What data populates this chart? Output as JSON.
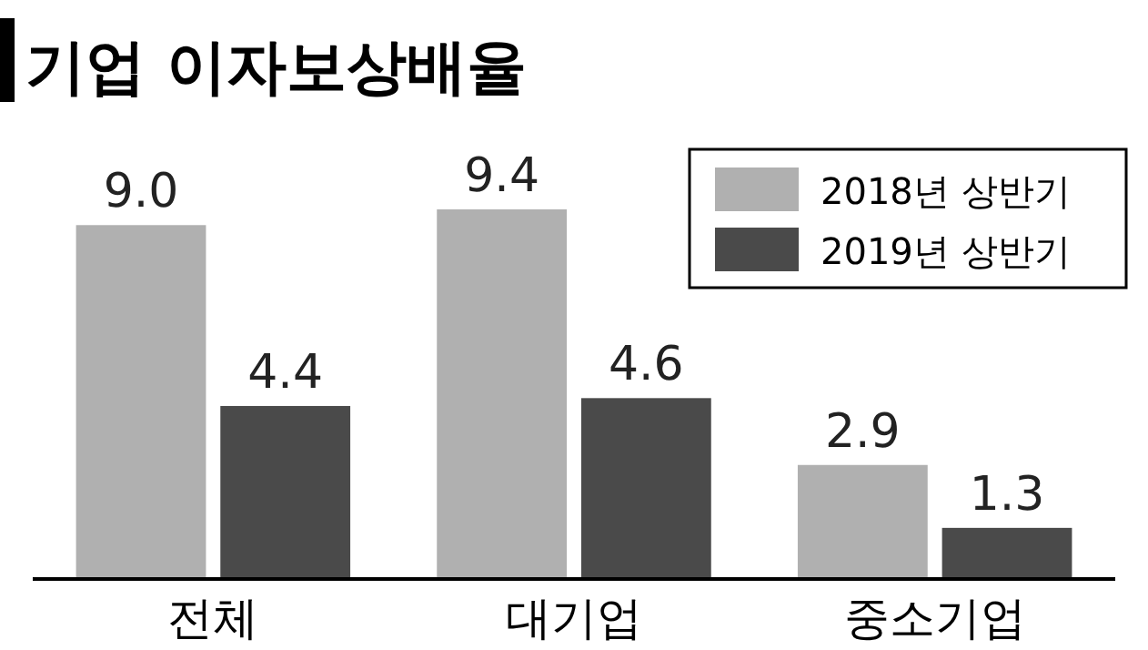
{
  "chart_data": {
    "type": "bar",
    "title": "기업 이자보상배율",
    "categories": [
      "전체",
      "대기업",
      "중소기업"
    ],
    "series": [
      {
        "name": "2018년 상반기",
        "color": "#b0b0b0",
        "values": [
          9.0,
          9.4,
          2.9
        ],
        "value_labels": [
          "9.0",
          "9.4",
          "2.9"
        ]
      },
      {
        "name": "2019년 상반기",
        "color": "#4a4a4a",
        "values": [
          4.4,
          4.6,
          1.3
        ],
        "value_labels": [
          "4.4",
          "4.6",
          "1.3"
        ]
      }
    ],
    "legend": "top right"
  }
}
